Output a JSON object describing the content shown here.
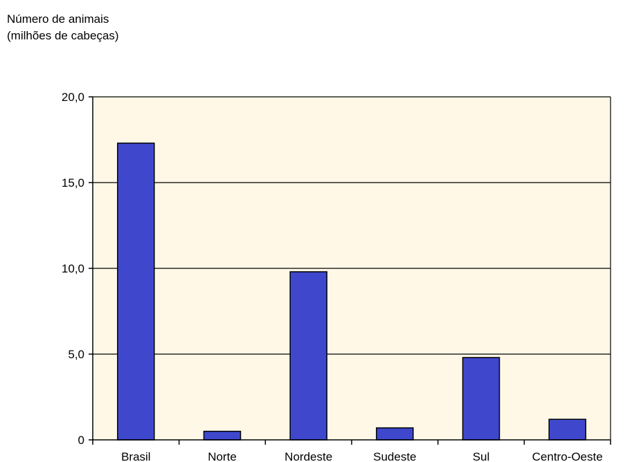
{
  "chart_data": {
    "type": "bar",
    "title_lines": [
      "Número de animais",
      "(milhões de cabeças)"
    ],
    "categories": [
      "Brasil",
      "Norte",
      "Nordeste",
      "Sudeste",
      "Sul",
      "Centro-Oeste"
    ],
    "values": [
      17.3,
      0.5,
      9.8,
      0.7,
      4.8,
      1.2
    ],
    "ylim": [
      0,
      20
    ],
    "yticks": [
      0,
      5,
      10,
      15,
      20
    ],
    "ytick_labels": [
      "0",
      "5,0",
      "10,0",
      "15,0",
      "20,0"
    ],
    "grid": true,
    "colors": {
      "bar_fill": "#3f48cc",
      "bar_stroke": "#000000",
      "plot_background": "#fff8e7",
      "gridline": "#000000"
    }
  }
}
